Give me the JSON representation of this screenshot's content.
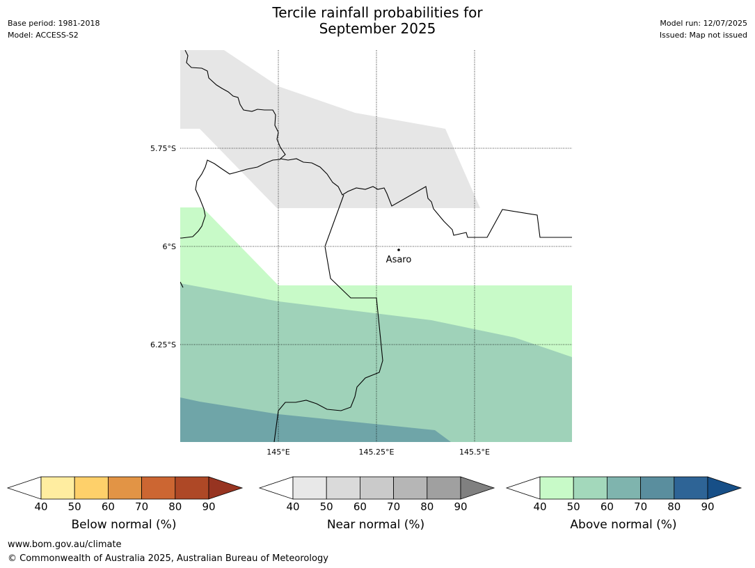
{
  "header": {
    "title_line1": "Tercile rainfall probabilities for",
    "title_line2": "September 2025",
    "base_period": "Base period: 1981-2018",
    "model": "Model: ACCESS-S2",
    "model_run": "Model run: 12/07/2025",
    "issued": "Issued: Map not issued"
  },
  "map": {
    "lat_labels": [
      "5.75°S",
      "6°S",
      "6.25°S"
    ],
    "lon_labels": [
      "145°E",
      "145.25°E",
      "145.5°E"
    ],
    "place": "Asaro",
    "colors": {
      "near_40": "#e6e6e6",
      "above_40": "#c8fac8",
      "above_50": "#9fd2b9",
      "above_60": "#6fa5a8"
    }
  },
  "colorbars": [
    {
      "title": "Below normal (%)",
      "ticks": [
        "40",
        "50",
        "60",
        "70",
        "80",
        "90"
      ],
      "colors": [
        "#ffffff",
        "#ffeda0",
        "#fed06a",
        "#e29445",
        "#cc6632",
        "#ae4826",
        "#973421"
      ]
    },
    {
      "title": "Near normal (%)",
      "ticks": [
        "40",
        "50",
        "60",
        "70",
        "80",
        "90"
      ],
      "colors": [
        "#ffffff",
        "#e8e8e8",
        "#dadada",
        "#cacaca",
        "#b6b6b6",
        "#a0a0a0",
        "#808080"
      ]
    },
    {
      "title": "Above normal (%)",
      "ticks": [
        "40",
        "50",
        "60",
        "70",
        "80",
        "90"
      ],
      "colors": [
        "#ffffff",
        "#c8fac8",
        "#a3d8bb",
        "#7fb4ae",
        "#5a8e9e",
        "#2e6496",
        "#174f87"
      ]
    }
  ],
  "footer": {
    "website": "www.bom.gov.au/climate",
    "copyright": "© Commonwealth of Australia 2025, Australian Bureau of Meteorology"
  }
}
